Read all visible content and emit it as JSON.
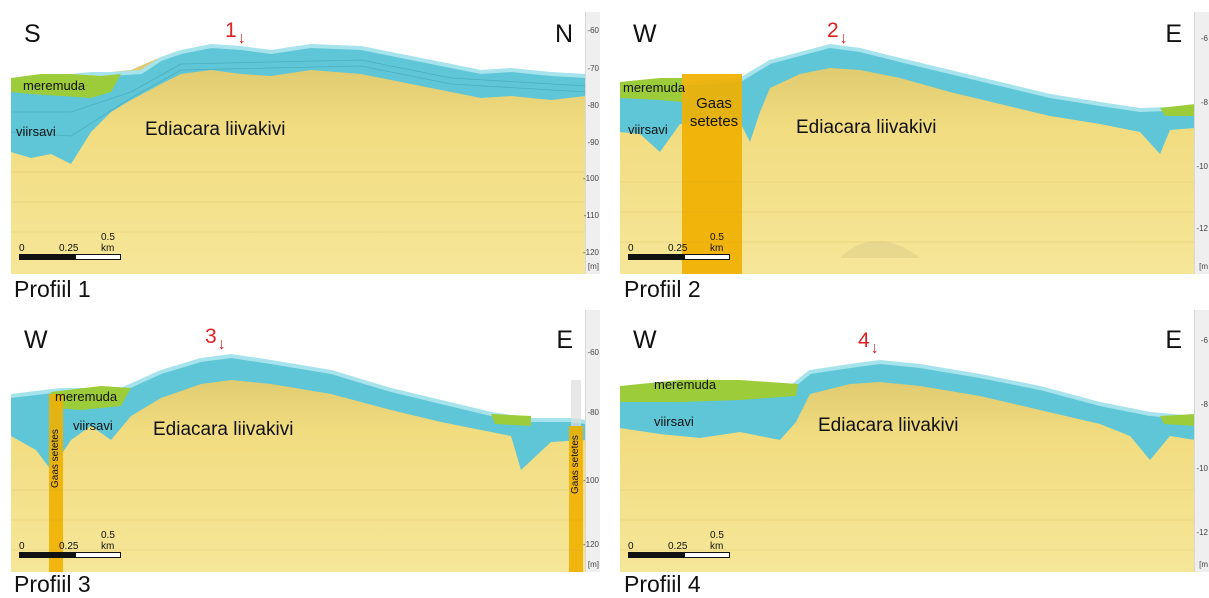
{
  "panels": [
    {
      "caption": "Profiil 1",
      "dir_left": "S",
      "dir_right": "N",
      "marker": "1",
      "labels": {
        "meremuda": "meremuda",
        "viirsavi": "viirsavi",
        "ediacara": "Ediacara liivakivi"
      },
      "gas_labels": [],
      "scale": {
        "t0": "0",
        "t1": "0.25",
        "t2": "0.5 km"
      },
      "yticks": [
        "-60",
        "-70",
        "-80",
        "-90",
        "-100",
        "-110",
        "-120",
        "[m]"
      ]
    },
    {
      "caption": "Profiil 2",
      "dir_left": "W",
      "dir_right": "E",
      "marker": "2",
      "labels": {
        "meremuda": "meremuda",
        "viirsavi": "viirsavi",
        "ediacara": "Ediacara liivakivi",
        "gas": "Gaas\nsetetes"
      },
      "gas_labels": [],
      "scale": {
        "t0": "0",
        "t1": "0.25",
        "t2": "0.5 km"
      },
      "yticks": [
        "-6",
        "-8",
        "-10",
        "-12",
        "[m"
      ]
    },
    {
      "caption": "Profiil 3",
      "dir_left": "W",
      "dir_right": "E",
      "marker": "3",
      "labels": {
        "meremuda": "meremuda",
        "viirsavi": "viirsavi",
        "ediacara": "Ediacara liivakivi"
      },
      "gas_labels": [
        "Gaas setetes",
        "Gaas setetes"
      ],
      "scale": {
        "t0": "0",
        "t1": "0.25",
        "t2": "0.5 km"
      },
      "yticks": [
        "-60",
        "-80",
        "-100",
        "-120",
        "[m]"
      ]
    },
    {
      "caption": "Profiil 4",
      "dir_left": "W",
      "dir_right": "E",
      "marker": "4",
      "labels": {
        "meremuda": "meremuda",
        "viirsavi": "viirsavi",
        "ediacara": "Ediacara liivakivi"
      },
      "gas_labels": [],
      "scale": {
        "t0": "0",
        "t1": "0.25",
        "t2": "0.5 km"
      },
      "yticks": [
        "-6",
        "-8",
        "-10",
        "-12",
        "[m"
      ]
    }
  ],
  "colors": {
    "sandstone": "#f3dc78",
    "sandstone_light": "#f8ea9c",
    "clay": "#5ec6d6",
    "clay_light": "#a6e3ec",
    "mud": "#9ccc3a",
    "gas": "#f0b000",
    "marker": "#dd2020"
  }
}
